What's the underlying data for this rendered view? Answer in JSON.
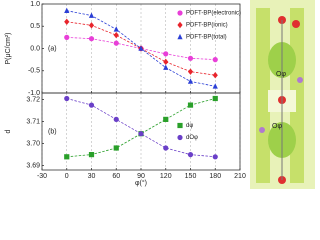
{
  "chart_data": [
    {
      "type": "line",
      "panel_label": "(a)",
      "y_label": "P(μC/cm²)",
      "xlim": [
        -30,
        210
      ],
      "xticks": [
        -30,
        0,
        30,
        60,
        90,
        120,
        150,
        180,
        210
      ],
      "ylim": [
        -1.0,
        1.0
      ],
      "yticks": [
        {
          "value": -1.0,
          "label": "-1.0"
        },
        -0.5,
        {
          "value": 0.0,
          "label": "0.0"
        },
        0.5,
        {
          "value": 1.0,
          "label": "1.0"
        }
      ],
      "grid": "x",
      "legend": "upper right",
      "x": [
        0,
        30,
        60,
        90,
        120,
        150,
        180
      ],
      "series": [
        {
          "name": "PDFT-BP(electronic)",
          "color": "#e83fd8",
          "marker": "circle",
          "values": [
            0.25,
            0.22,
            0.12,
            0.0,
            -0.12,
            -0.22,
            -0.25
          ]
        },
        {
          "name": "PDFT-BP(ionic)",
          "color": "#e8242c",
          "marker": "diamond",
          "values": [
            0.6,
            0.52,
            0.3,
            0.0,
            -0.3,
            -0.52,
            -0.6
          ]
        },
        {
          "name": "PDFT-BP(total)",
          "color": "#2b3fd6",
          "marker": "triangle",
          "values": [
            0.85,
            0.74,
            0.43,
            0.0,
            -0.43,
            -0.74,
            -0.85
          ]
        }
      ]
    },
    {
      "type": "line",
      "panel_label": "(b)",
      "y_label": "d",
      "x_label": "φ(°)",
      "xlim": [
        -30,
        210
      ],
      "xticks": [
        -30,
        0,
        30,
        60,
        90,
        120,
        150,
        180,
        210
      ],
      "ylim": [
        3.688,
        3.723
      ],
      "yticks": [
        3.69,
        {
          "value": 3.7,
          "label": "3.70"
        },
        3.71,
        3.72
      ],
      "grid": "x",
      "legend": "center right",
      "x": [
        0,
        30,
        60,
        90,
        120,
        150,
        180
      ],
      "series": [
        {
          "name": "dφ",
          "color": "#2aa02a",
          "marker": "square",
          "values": [
            3.694,
            3.695,
            3.698,
            3.7045,
            3.711,
            3.7175,
            3.7205
          ]
        },
        {
          "name": "dOφ",
          "color": "#6a3fc8",
          "marker": "circle",
          "values": [
            3.7205,
            3.7175,
            3.711,
            3.7045,
            3.698,
            3.695,
            3.694
          ]
        }
      ]
    }
  ],
  "structure_image": {
    "labels": [
      "Oφ",
      "Oφ"
    ]
  }
}
